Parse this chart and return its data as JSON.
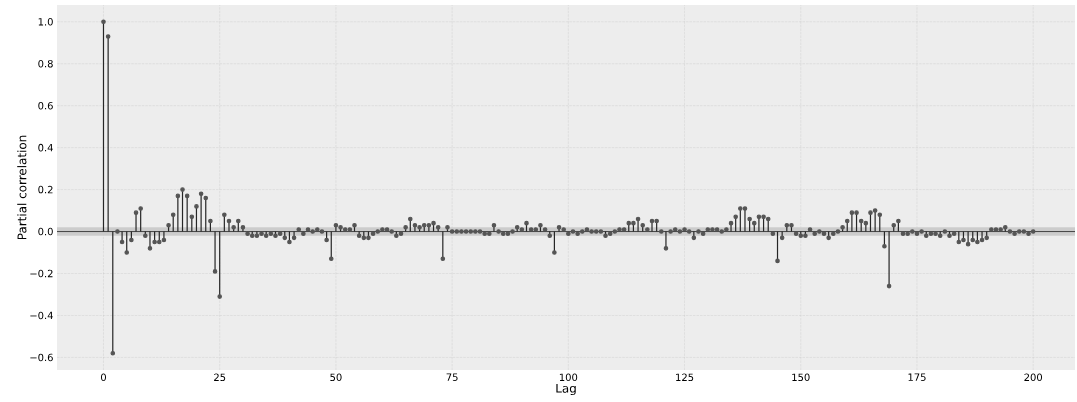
{
  "chart_data": {
    "type": "lollipop",
    "xlabel": "Lag",
    "ylabel": "Partial correlation",
    "x": [
      0,
      1,
      2,
      3,
      4,
      5,
      6,
      7,
      8,
      9,
      10,
      11,
      12,
      13,
      14,
      15,
      16,
      17,
      18,
      19,
      20,
      21,
      22,
      23,
      24,
      25,
      26,
      27,
      28,
      29,
      30,
      31,
      32,
      33,
      34,
      35,
      36,
      37,
      38,
      39,
      40,
      41,
      42,
      43,
      44,
      45,
      46,
      47,
      48,
      49,
      50,
      51,
      52,
      53,
      54,
      55,
      56,
      57,
      58,
      59,
      60,
      61,
      62,
      63,
      64,
      65,
      66,
      67,
      68,
      69,
      70,
      71,
      72,
      73,
      74,
      75,
      76,
      77,
      78,
      79,
      80,
      81,
      82,
      83,
      84,
      85,
      86,
      87,
      88,
      89,
      90,
      91,
      92,
      93,
      94,
      95,
      96,
      97,
      98,
      99,
      100,
      101,
      102,
      103,
      104,
      105,
      106,
      107,
      108,
      109,
      110,
      111,
      112,
      113,
      114,
      115,
      116,
      117,
      118,
      119,
      120,
      121,
      122,
      123,
      124,
      125,
      126,
      127,
      128,
      129,
      130,
      131,
      132,
      133,
      134,
      135,
      136,
      137,
      138,
      139,
      140,
      141,
      142,
      143,
      144,
      145,
      146,
      147,
      148,
      149,
      150,
      151,
      152,
      153,
      154,
      155,
      156,
      157,
      158,
      159,
      160,
      161,
      162,
      163,
      164,
      165,
      166,
      167,
      168,
      169,
      170,
      171,
      172,
      173,
      174,
      175,
      176,
      177,
      178,
      179,
      180,
      181,
      182,
      183,
      184,
      185,
      186,
      187,
      188,
      189,
      190,
      191,
      192,
      193,
      194,
      195,
      196,
      197,
      198,
      199,
      200
    ],
    "values": [
      1.0,
      0.93,
      -0.58,
      0.0,
      -0.05,
      -0.1,
      -0.04,
      0.09,
      0.11,
      -0.02,
      -0.08,
      -0.05,
      -0.05,
      -0.04,
      0.03,
      0.08,
      0.17,
      0.2,
      0.17,
      0.07,
      0.12,
      0.18,
      0.16,
      0.05,
      -0.19,
      -0.31,
      0.08,
      0.05,
      0.02,
      0.05,
      0.02,
      -0.01,
      -0.02,
      -0.02,
      -0.01,
      -0.02,
      -0.01,
      -0.02,
      -0.01,
      -0.03,
      -0.05,
      -0.03,
      0.01,
      -0.01,
      0.01,
      0.0,
      0.01,
      0.0,
      -0.04,
      -0.13,
      0.03,
      0.02,
      0.01,
      0.01,
      0.03,
      -0.02,
      -0.03,
      -0.03,
      -0.01,
      0.0,
      0.01,
      0.01,
      0.0,
      -0.02,
      -0.01,
      0.02,
      0.06,
      0.03,
      0.02,
      0.03,
      0.03,
      0.04,
      0.02,
      -0.13,
      0.02,
      0.0,
      0.0,
      0.0,
      0.0,
      0.0,
      0.0,
      0.0,
      -0.01,
      -0.01,
      0.03,
      0.0,
      -0.01,
      -0.01,
      0.0,
      0.02,
      0.01,
      0.04,
      0.01,
      0.01,
      0.03,
      0.01,
      -0.02,
      -0.1,
      0.02,
      0.01,
      -0.01,
      0.0,
      -0.01,
      0.0,
      0.01,
      0.0,
      0.0,
      0.0,
      -0.02,
      -0.01,
      0.0,
      0.01,
      0.01,
      0.04,
      0.04,
      0.06,
      0.03,
      0.01,
      0.05,
      0.05,
      0.0,
      -0.08,
      0.0,
      0.01,
      0.0,
      0.01,
      0.0,
      -0.03,
      0.0,
      -0.01,
      0.01,
      0.01,
      0.01,
      0.0,
      0.01,
      0.04,
      0.07,
      0.11,
      0.11,
      0.06,
      0.04,
      0.07,
      0.07,
      0.06,
      -0.01,
      -0.14,
      -0.03,
      0.03,
      0.03,
      -0.01,
      -0.02,
      -0.02,
      0.01,
      -0.01,
      0.0,
      -0.01,
      -0.03,
      -0.01,
      0.0,
      0.02,
      0.05,
      0.09,
      0.09,
      0.05,
      0.04,
      0.09,
      0.1,
      0.08,
      -0.07,
      -0.26,
      0.03,
      0.05,
      -0.01,
      -0.01,
      0.0,
      -0.01,
      0.0,
      -0.02,
      -0.01,
      -0.01,
      -0.02,
      0.0,
      -0.02,
      -0.01,
      -0.05,
      -0.04,
      -0.06,
      -0.04,
      -0.05,
      -0.04,
      -0.03,
      0.01,
      0.01,
      0.01,
      0.02,
      0.0,
      -0.01,
      0.0,
      0.0,
      -0.01,
      0.0
    ],
    "color": "#555555",
    "marker": "circle",
    "xlim": [
      -10,
      209
    ],
    "ylim": [
      -0.66,
      1.08
    ],
    "xticks": [
      0,
      25,
      50,
      75,
      100,
      125,
      150,
      175,
      200
    ],
    "yticks": [
      {
        "value": -0.6,
        "label": "−0.6"
      },
      {
        "value": -0.4,
        "label": "−0.4"
      },
      {
        "value": -0.2,
        "label": "−0.2"
      },
      {
        "value": 0.0,
        "label": "0.0"
      },
      {
        "value": 0.2,
        "label": "0.2"
      },
      {
        "value": 0.4,
        "label": "0.4"
      },
      {
        "value": 0.6,
        "label": "0.6"
      },
      {
        "value": 0.8,
        "label": "0.8"
      },
      {
        "value": 1.0,
        "label": "1.0"
      }
    ],
    "grid": true,
    "ref_lines": [
      {
        "axis": "y",
        "value": 0,
        "color": "#444444"
      }
    ],
    "bands": [
      {
        "axis": "y",
        "from": -0.02,
        "to": 0.02,
        "color": "#cccccc"
      }
    ]
  }
}
